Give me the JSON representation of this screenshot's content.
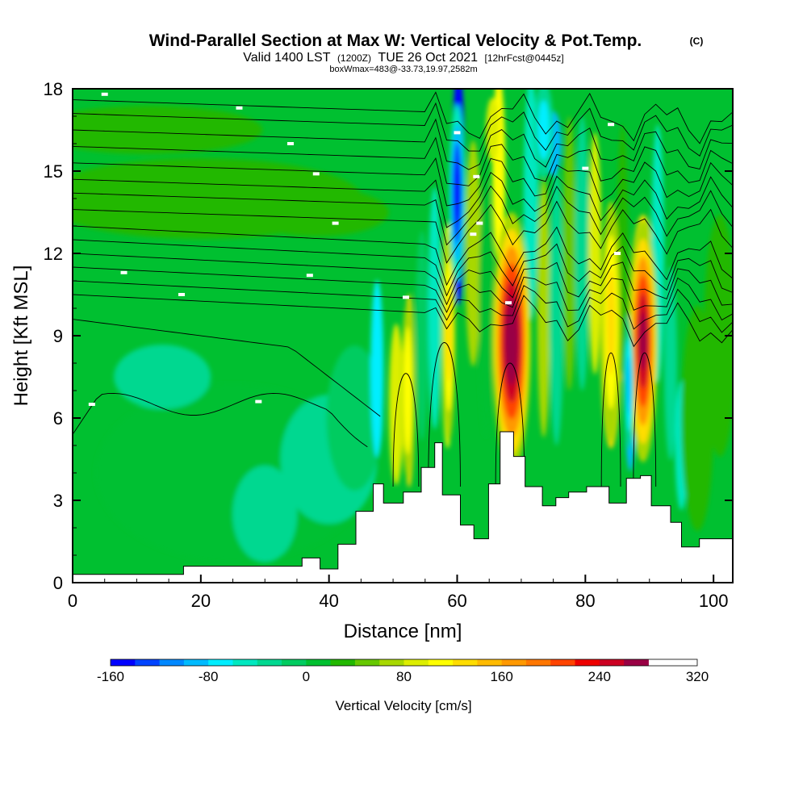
{
  "chart_data": {
    "type": "heatmap",
    "title": "Wind-Parallel Section at Max W: Vertical Velocity & Pot.Temp.",
    "title_mark": "(C)",
    "subtitle_main": "Valid 1400 LST",
    "subtitle_utc": "(1200Z)",
    "subtitle_date": "TUE 26 Oct 2021",
    "subtitle_fcst": "[12hrFcst@0445z]",
    "subtitle_box": "boxWmax=483@-33.73,19.97,2582m",
    "xlabel": "Distance [nm]",
    "ylabel": "Height [Kft MSL]",
    "xlim": [
      0,
      103
    ],
    "ylim": [
      0,
      18
    ],
    "x_ticks": [
      0,
      20,
      40,
      60,
      80,
      100
    ],
    "x_tick_labels": [
      "0",
      "20",
      "40",
      "60",
      "80",
      "100"
    ],
    "y_ticks": [
      0,
      3,
      6,
      9,
      12,
      15,
      18
    ],
    "y_tick_labels": [
      "0",
      "3",
      "6",
      "9",
      "12",
      "15",
      "18"
    ],
    "colorbar": {
      "label": "Vertical Velocity [cm/s]",
      "min": -160,
      "max": 320,
      "step": 20,
      "tick_values": [
        -160,
        -80,
        0,
        80,
        160,
        240,
        320
      ],
      "tick_labels": [
        "-160",
        "-80",
        "0",
        "80",
        "160",
        "240",
        "320"
      ],
      "colors": [
        "#0000ff",
        "#0044ff",
        "#0088ff",
        "#00bbff",
        "#00eeff",
        "#00e8c0",
        "#00d890",
        "#00cc60",
        "#00c030",
        "#22b800",
        "#66c800",
        "#a8d800",
        "#ddee00",
        "#ffff00",
        "#ffdd00",
        "#ffbb00",
        "#ff9900",
        "#ff7700",
        "#ff4400",
        "#ee0000",
        "#cc0022",
        "#990044"
      ]
    },
    "terrain_profile": {
      "x": [
        0,
        17.3,
        17.3,
        35.8,
        35.8,
        38.6,
        38.6,
        41.4,
        41.4,
        44.2,
        44.2,
        46.9,
        46.9,
        48.5,
        48.5,
        51.6,
        51.6,
        54.4,
        54.4,
        56.5,
        56.5,
        57.7,
        57.7,
        60.5,
        60.5,
        62.6,
        62.6,
        64.9,
        64.9,
        66.7,
        66.7,
        68.8,
        68.8,
        70.6,
        70.6,
        73.3,
        73.3,
        75.4,
        75.4,
        77.4,
        77.4,
        80.2,
        80.2,
        83.7,
        83.7,
        86.4,
        86.4,
        88.6,
        88.6,
        90.3,
        90.3,
        93.3,
        93.3,
        95.0,
        95.0,
        97.8,
        97.8,
        103
      ],
      "y": [
        0.3,
        0.3,
        0.6,
        0.6,
        0.9,
        0.9,
        0.5,
        0.5,
        1.4,
        1.4,
        2.6,
        2.6,
        3.6,
        3.6,
        2.9,
        2.9,
        3.3,
        3.3,
        4.2,
        4.2,
        5.1,
        5.1,
        3.2,
        3.2,
        2.1,
        2.1,
        1.6,
        1.6,
        3.6,
        3.6,
        5.5,
        5.5,
        4.6,
        4.6,
        3.5,
        3.5,
        2.8,
        2.8,
        3.1,
        3.1,
        3.3,
        3.3,
        3.5,
        3.5,
        2.9,
        2.9,
        3.8,
        3.8,
        3.9,
        3.9,
        2.8,
        2.8,
        2.2,
        2.2,
        1.3,
        1.3,
        1.6,
        1.6
      ]
    },
    "updraft_cores": [
      {
        "x": 68.5,
        "y": 8.8,
        "w_cms": 320
      },
      {
        "x": 89.0,
        "y": 8.8,
        "w_cms": 280
      },
      {
        "x": 84.0,
        "y": 9.5,
        "w_cms": 140
      },
      {
        "x": 59.0,
        "y": 9.0,
        "w_cms": 120
      },
      {
        "x": 52.0,
        "y": 7.0,
        "w_cms": 110
      }
    ],
    "downdraft_cores": [
      {
        "x": 60.0,
        "y": 14.0,
        "w_cms": -160
      },
      {
        "x": 87.0,
        "y": 7.0,
        "w_cms": -100
      }
    ],
    "contour_labels": [
      "",
      "",
      "",
      "",
      "",
      "",
      "",
      "",
      "",
      "",
      "",
      "",
      "",
      "",
      "",
      "",
      "",
      "",
      ""
    ]
  }
}
